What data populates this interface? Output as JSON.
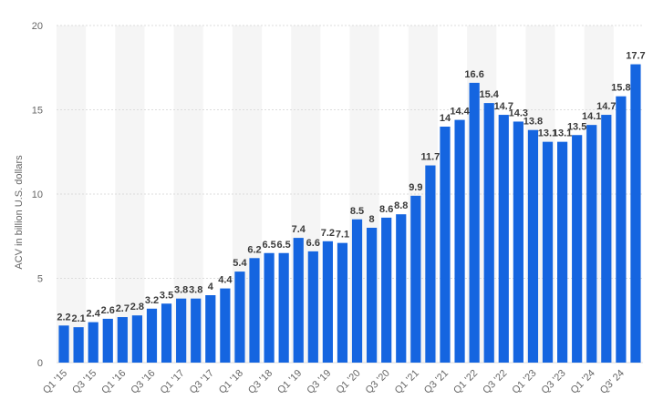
{
  "chart_data": {
    "type": "bar",
    "title": "",
    "xlabel": "",
    "ylabel": "ACV in billion U.S. dollars",
    "ylim": [
      0,
      20
    ],
    "yticks": [
      0,
      5,
      10,
      15,
      20
    ],
    "grid": true,
    "legend": "none",
    "bar_color": "#1565e0",
    "band_color": "#f5f5f5",
    "categories": [
      "Q1 '15",
      "Q2 '15",
      "Q3 '15",
      "Q4 '15",
      "Q1 '16",
      "Q2 '16",
      "Q3 '16",
      "Q4 '16",
      "Q1 '17",
      "Q2 '17",
      "Q3 '17",
      "Q4 '17",
      "Q1 '18",
      "Q2 '18",
      "Q3 '18",
      "Q4 '18",
      "Q1 '19",
      "Q2 '19",
      "Q3 '19",
      "Q4 '19",
      "Q1 '20",
      "Q2 '20",
      "Q3 '20",
      "Q4 '20",
      "Q1 '21",
      "Q2 '21",
      "Q3 '21",
      "Q4 '21",
      "Q1 '22",
      "Q2 '22",
      "Q3 '22",
      "Q4 '22",
      "Q1 '23",
      "Q2 '23",
      "Q3 '23",
      "Q4 '23",
      "Q1 '24",
      "Q2 '24",
      "Q3' 24",
      "Q4 '24"
    ],
    "x_tick_labels": [
      "Q1 '15",
      "",
      "Q3 '15",
      "",
      "Q1 '16",
      "",
      "Q3 '16",
      "",
      "Q1 '17",
      "",
      "Q3 '17",
      "",
      "Q1 '18",
      "",
      "Q3 '18",
      "",
      "Q1 '19",
      "",
      "Q3 '19",
      "",
      "Q1 '20",
      "",
      "Q3 '20",
      "",
      "Q1 '21",
      "",
      "Q3 '21",
      "",
      "Q1 '22",
      "",
      "Q3 '22",
      "",
      "Q1 '23",
      "",
      "Q3 '23",
      "",
      "Q1 '24",
      "",
      "Q3' 24",
      ""
    ],
    "values": [
      2.2,
      2.1,
      2.4,
      2.6,
      2.7,
      2.8,
      3.2,
      3.5,
      3.8,
      3.8,
      4,
      4.4,
      5.4,
      6.2,
      6.5,
      6.5,
      7.4,
      6.6,
      7.2,
      7.1,
      8.5,
      8,
      8.6,
      8.8,
      9.9,
      11.7,
      14,
      14.4,
      16.6,
      15.4,
      14.7,
      14.3,
      13.8,
      13.1,
      13.1,
      13.5,
      14.1,
      14.7,
      15.8,
      17.7
    ]
  }
}
